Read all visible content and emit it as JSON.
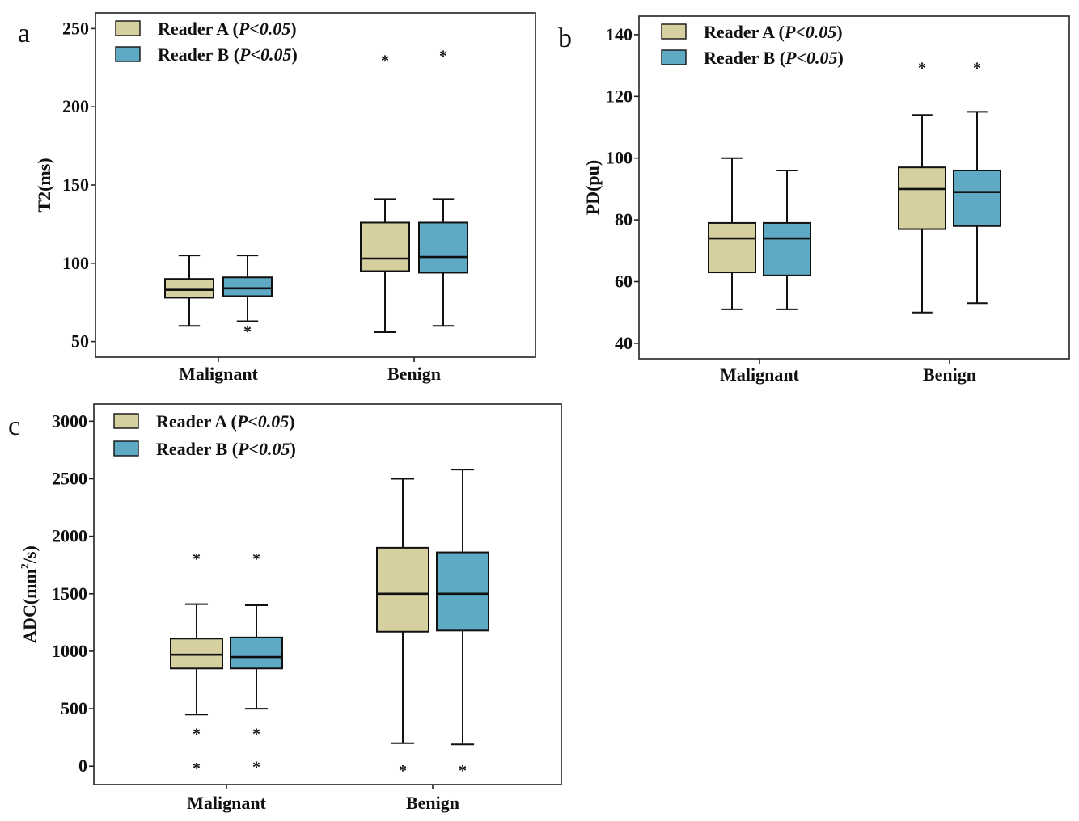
{
  "colors": {
    "reader_a": "#d6cfa0",
    "reader_b": "#5ea9c4"
  },
  "chart_data": [
    {
      "panel": "a",
      "type": "box",
      "ylabel": "T2(ms)",
      "ylim": [
        40,
        260
      ],
      "yticks": [
        50,
        100,
        150,
        200,
        250
      ],
      "categories": [
        "Malignant",
        "Benign"
      ],
      "legend": {
        "position": "top-left",
        "entries": [
          {
            "name": "Reader A",
            "p": "P<0.05"
          },
          {
            "name": "Reader B",
            "p": "P<0.05"
          }
        ]
      },
      "series": [
        {
          "name": "Reader A",
          "boxes": [
            {
              "min": 60,
              "q1": 78,
              "median": 83,
              "q3": 90,
              "max": 105,
              "outliers": []
            },
            {
              "min": 56,
              "q1": 95,
              "median": 103,
              "q3": 126,
              "max": 141,
              "outliers": [
                233
              ]
            }
          ]
        },
        {
          "name": "Reader B",
          "boxes": [
            {
              "min": 63,
              "q1": 79,
              "median": 84,
              "q3": 91,
              "max": 105,
              "outliers": [
                60
              ]
            },
            {
              "min": 60,
              "q1": 94,
              "median": 104,
              "q3": 126,
              "max": 141,
              "outliers": [
                236
              ]
            }
          ]
        }
      ]
    },
    {
      "panel": "b",
      "type": "box",
      "ylabel": "PD(pu)",
      "ylim": [
        35,
        146
      ],
      "yticks": [
        40,
        60,
        80,
        100,
        120,
        140
      ],
      "categories": [
        "Malignant",
        "Benign"
      ],
      "legend": {
        "position": "top-left",
        "entries": [
          {
            "name": "Reader A",
            "p": "P<0.05"
          },
          {
            "name": "Reader B",
            "p": "P<0.05"
          }
        ]
      },
      "series": [
        {
          "name": "Reader A",
          "boxes": [
            {
              "min": 51,
              "q1": 63,
              "median": 74,
              "q3": 79,
              "max": 100,
              "outliers": []
            },
            {
              "min": 50,
              "q1": 77,
              "median": 90,
              "q3": 97,
              "max": 114,
              "outliers": [
                131
              ]
            }
          ]
        },
        {
          "name": "Reader B",
          "boxes": [
            {
              "min": 51,
              "q1": 62,
              "median": 74,
              "q3": 79,
              "max": 96,
              "outliers": []
            },
            {
              "min": 53,
              "q1": 78,
              "median": 89,
              "q3": 96,
              "max": 115,
              "outliers": [
                131
              ]
            }
          ]
        }
      ]
    },
    {
      "panel": "c",
      "type": "box",
      "ylabel_main": "ADC(mm",
      "ylabel_sup": "2",
      "ylabel_end": "/s)",
      "ylim": [
        -160,
        3150
      ],
      "yticks": [
        0,
        500,
        1000,
        1500,
        2000,
        2500,
        3000
      ],
      "categories": [
        "Malignant",
        "Benign"
      ],
      "legend": {
        "position": "top-left",
        "entries": [
          {
            "name": "Reader A",
            "p": "P<0.05"
          },
          {
            "name": "Reader B",
            "p": "P<0.05"
          }
        ]
      },
      "series": [
        {
          "name": "Reader A",
          "boxes": [
            {
              "min": 450,
              "q1": 850,
              "median": 970,
              "q3": 1110,
              "max": 1410,
              "outliers": [
                1850,
                330,
                30
              ]
            },
            {
              "min": 200,
              "q1": 1170,
              "median": 1500,
              "q3": 1900,
              "max": 2500,
              "outliers": [
                10
              ]
            }
          ]
        },
        {
          "name": "Reader B",
          "boxes": [
            {
              "min": 500,
              "q1": 850,
              "median": 950,
              "q3": 1120,
              "max": 1400,
              "outliers": [
                1850,
                330,
                40
              ]
            },
            {
              "min": 190,
              "q1": 1180,
              "median": 1500,
              "q3": 1860,
              "max": 2580,
              "outliers": [
                10
              ]
            }
          ]
        }
      ]
    }
  ]
}
